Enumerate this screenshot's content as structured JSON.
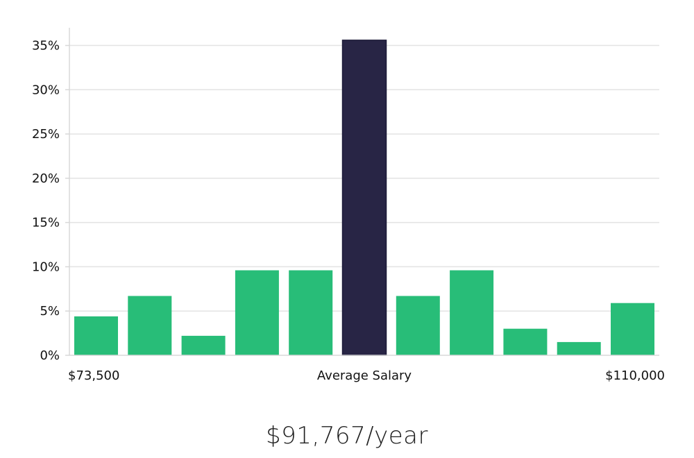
{
  "chart_data": {
    "type": "bar",
    "values": [
      4.4,
      6.7,
      2.2,
      9.6,
      9.6,
      35.6,
      6.7,
      9.6,
      3.0,
      1.5,
      5.9
    ],
    "highlight_index": 5,
    "ylim": [
      0,
      37
    ],
    "yticks": [
      "0%",
      "5%",
      "10%",
      "15%",
      "20%",
      "25%",
      "30%",
      "35%"
    ],
    "ytick_values": [
      0,
      5,
      10,
      15,
      20,
      25,
      30,
      35
    ],
    "x_min_label": "$73,500",
    "x_center_label": "Average Salary",
    "x_max_label": "$110,000",
    "grid": true,
    "colors": {
      "bar": "#28bd78",
      "highlight": "#282545",
      "grid": "#e3e3e3",
      "axis": "#d8d8d8"
    }
  },
  "salary_text": "$91,767/year"
}
